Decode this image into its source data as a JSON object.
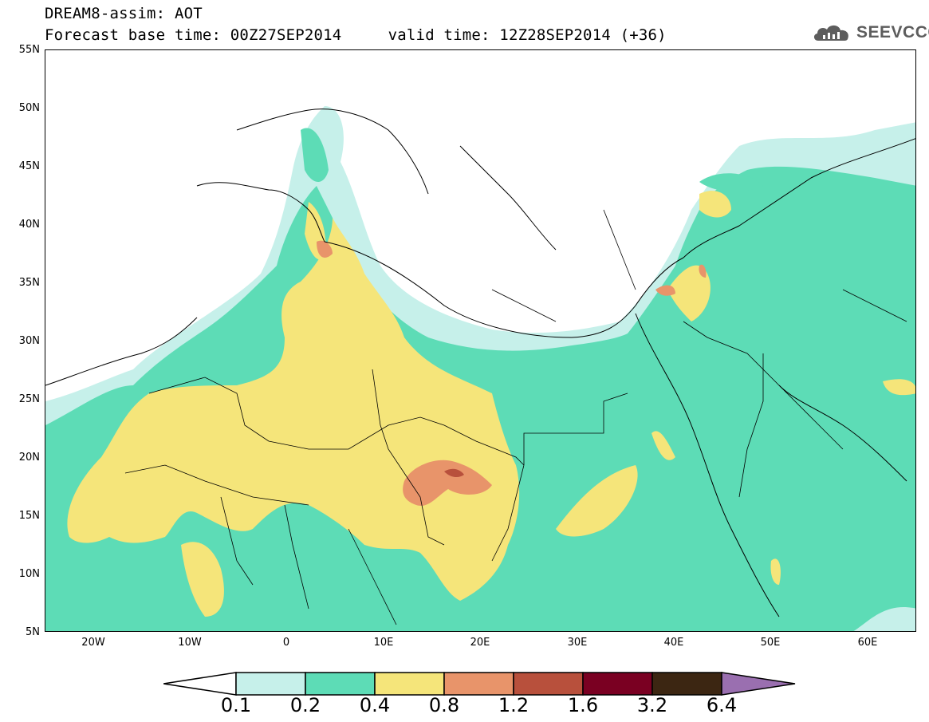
{
  "header": {
    "title_line1": "DREAM8-assim: AOT",
    "title_line2": "Forecast base time: 00Z27SEP2014     valid time: 12Z28SEP2014 (+36)"
  },
  "logo": {
    "text": "SEEVCCC",
    "icon": "cloud-icon"
  },
  "map": {
    "field": "AOT",
    "lon_range": [
      -25,
      65
    ],
    "lat_range": [
      5,
      55
    ],
    "lat_labels": [
      "55N",
      "50N",
      "45N",
      "40N",
      "35N",
      "30N",
      "25N",
      "20N",
      "15N",
      "10N",
      "5N"
    ],
    "lon_labels": [
      "20W",
      "10W",
      "0",
      "10E",
      "20E",
      "30E",
      "40E",
      "50E",
      "60E"
    ]
  },
  "colorbar": {
    "labels": [
      "0.1",
      "0.2",
      "0.4",
      "0.8",
      "1.2",
      "1.6",
      "3.2",
      "6.4"
    ],
    "colors": [
      "#c6f0ea",
      "#5ddcb6",
      "#f5e57a",
      "#e8946a",
      "#b8503c",
      "#7a0022",
      "#3c2612",
      "#9a6fb0"
    ],
    "under_color": "#ffffff"
  }
}
